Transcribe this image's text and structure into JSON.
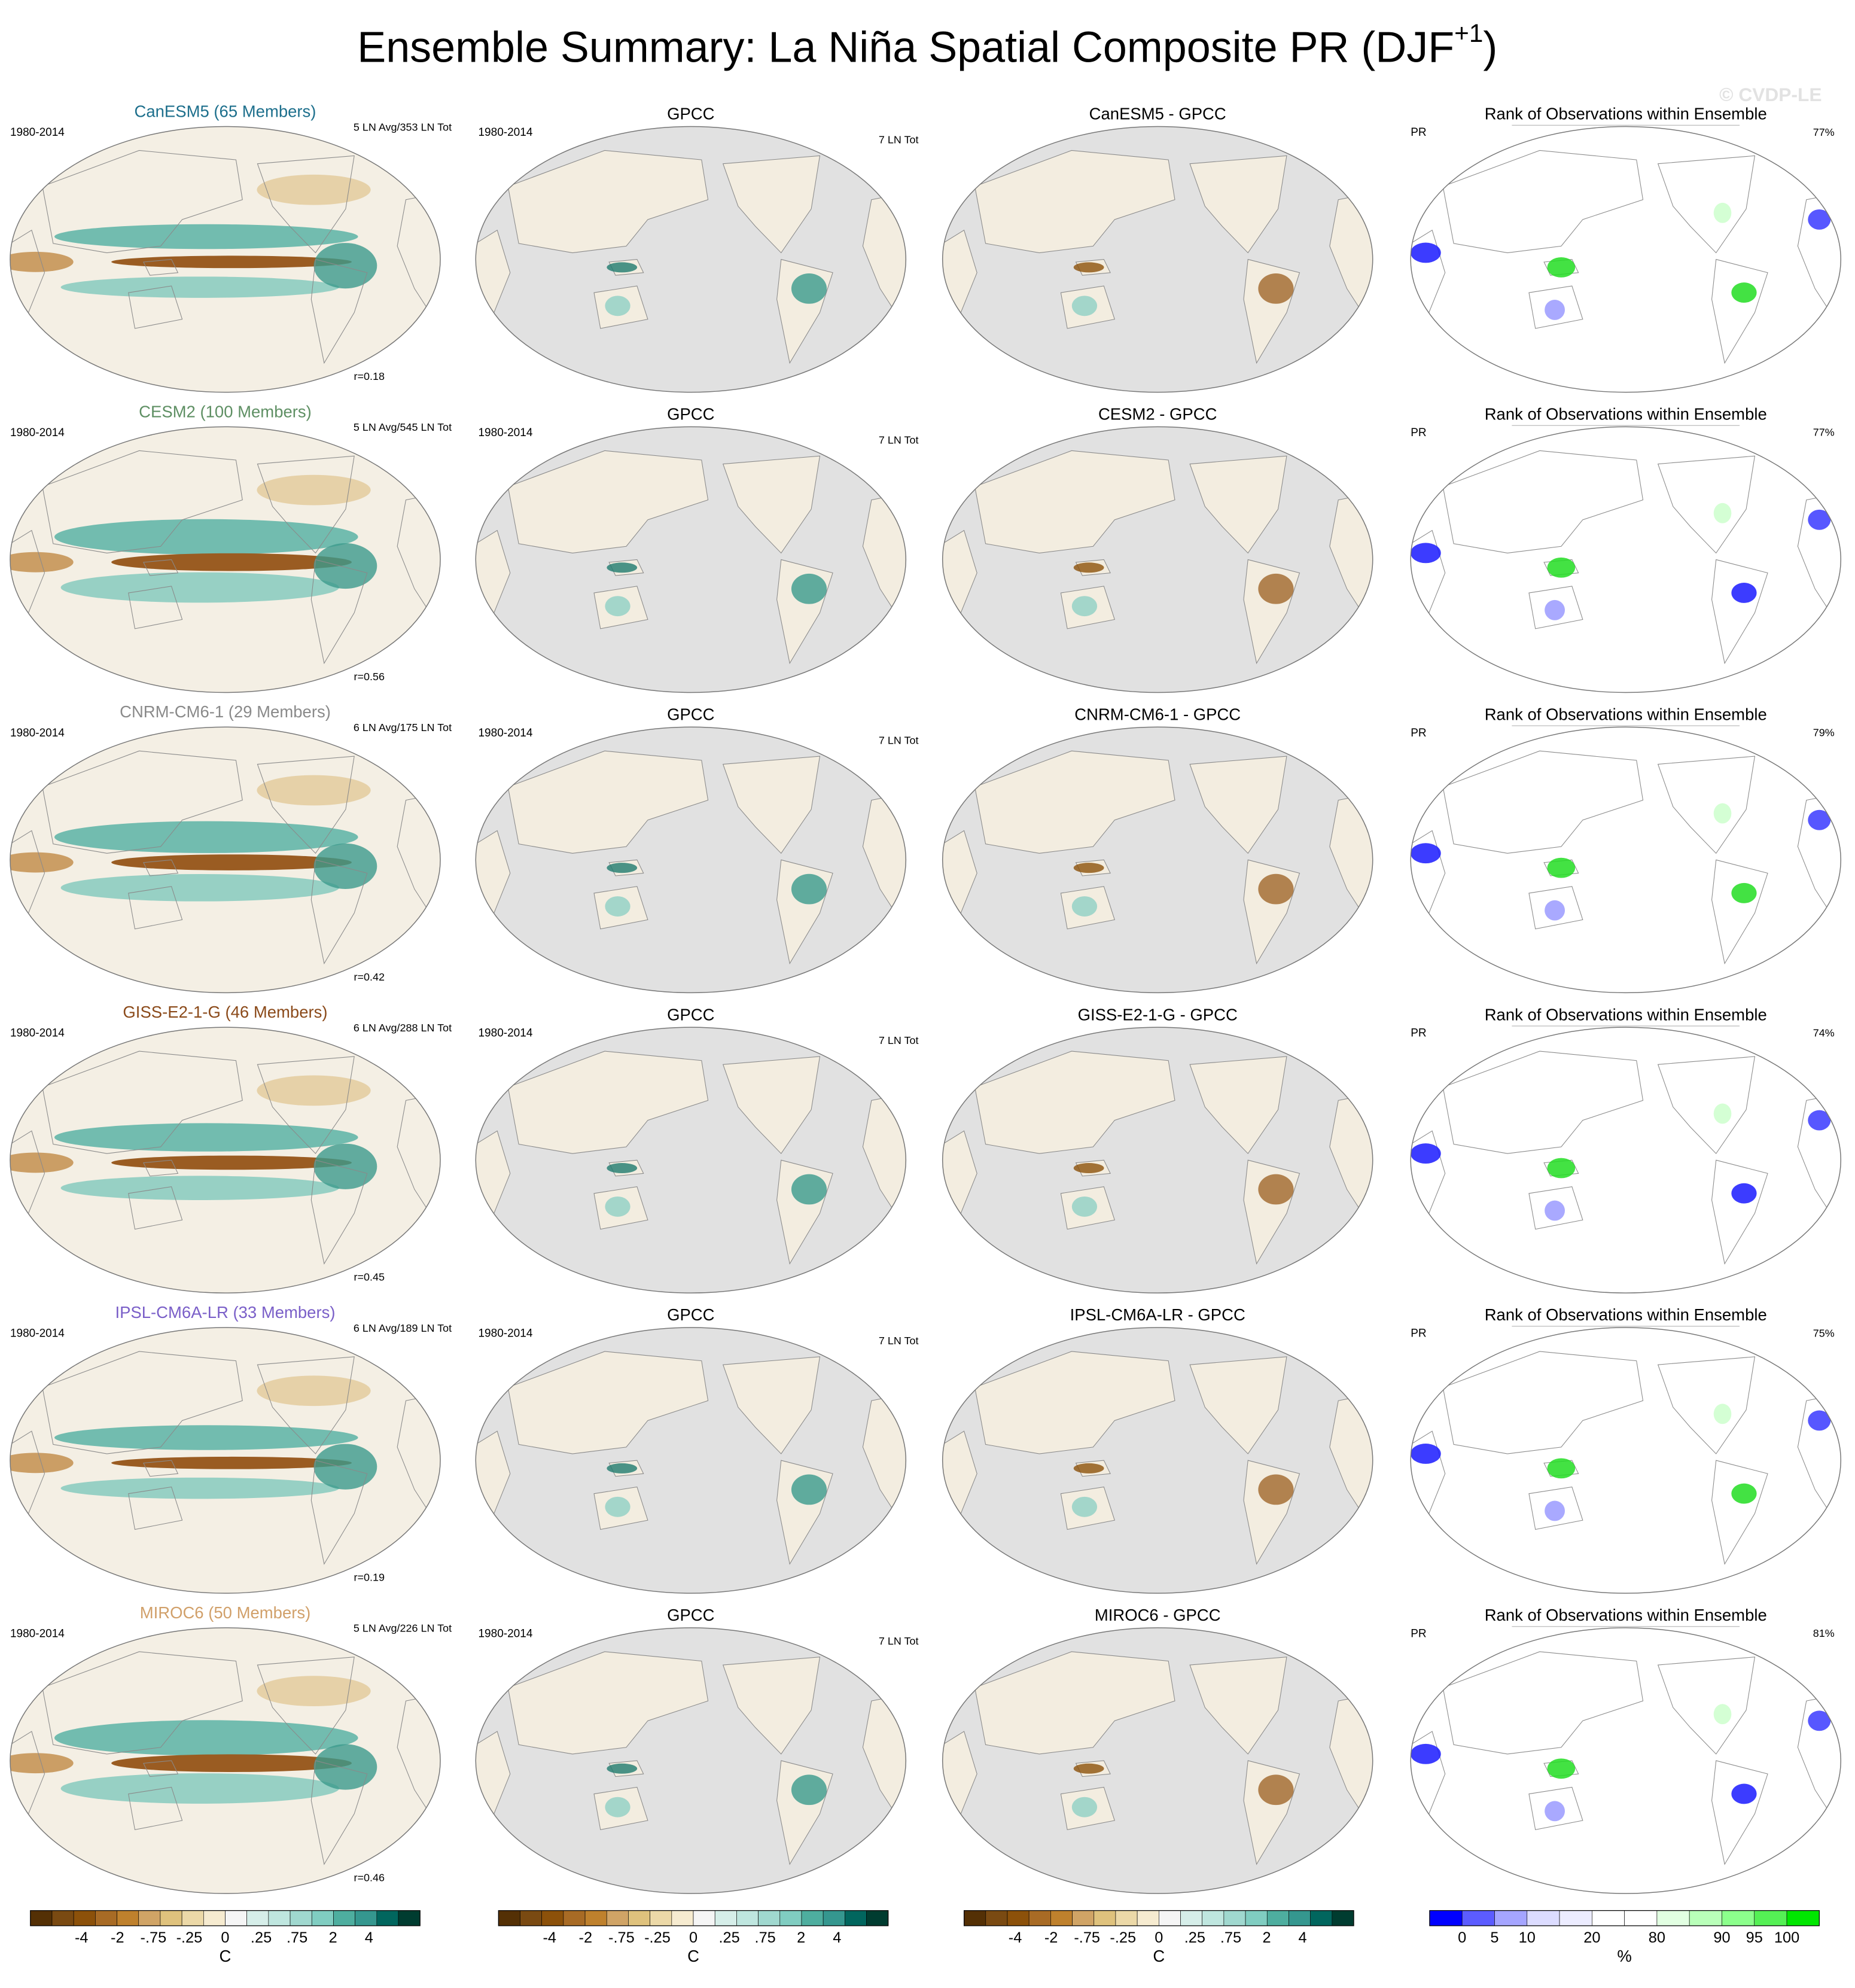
{
  "title": "Ensemble Summary: La Niña Spatial Composite PR (DJF",
  "title_sup": "+1",
  "watermark": "© CVDP-LE",
  "rows": [
    {
      "model": "CanESM5 (65 Members)",
      "model_color": "#1d6f8c",
      "period": "1980-2014",
      "counts": "5 LN Avg/353 LN Tot",
      "r": "r=0.18",
      "obs_title": "GPCC",
      "obs_period": "1980-2014",
      "obs_counts": "7 LN Tot",
      "diff_title": "CanESM5 - GPCC",
      "rank_title": "Rank of Observations within Ensemble",
      "rank_var": "PR",
      "rank_pct": "77%"
    },
    {
      "model": "CESM2 (100 Members)",
      "model_color": "#5e8f63",
      "period": "1980-2014",
      "counts": "5 LN Avg/545 LN Tot",
      "r": "r=0.56",
      "obs_title": "GPCC",
      "obs_period": "1980-2014",
      "obs_counts": "7 LN Tot",
      "diff_title": "CESM2 - GPCC",
      "rank_title": "Rank of Observations within Ensemble",
      "rank_var": "PR",
      "rank_pct": "77%"
    },
    {
      "model": "CNRM-CM6-1 (29 Members)",
      "model_color": "#8a8a8a",
      "period": "1980-2014",
      "counts": "6 LN Avg/175 LN Tot",
      "r": "r=0.42",
      "obs_title": "GPCC",
      "obs_period": "1980-2014",
      "obs_counts": "7 LN Tot",
      "diff_title": "CNRM-CM6-1 - GPCC",
      "rank_title": "Rank of Observations within Ensemble",
      "rank_var": "PR",
      "rank_pct": "79%"
    },
    {
      "model": "GISS-E2-1-G (46 Members)",
      "model_color": "#8b4a1a",
      "period": "1980-2014",
      "counts": "6 LN Avg/288 LN Tot",
      "r": "r=0.45",
      "obs_title": "GPCC",
      "obs_period": "1980-2014",
      "obs_counts": "7 LN Tot",
      "diff_title": "GISS-E2-1-G - GPCC",
      "rank_title": "Rank of Observations within Ensemble",
      "rank_var": "PR",
      "rank_pct": "74%"
    },
    {
      "model": "IPSL-CM6A-LR (33 Members)",
      "model_color": "#7a5fc8",
      "period": "1980-2014",
      "counts": "6 LN Avg/189 LN Tot",
      "r": "r=0.19",
      "obs_title": "GPCC",
      "obs_period": "1980-2014",
      "obs_counts": "7 LN Tot",
      "diff_title": "IPSL-CM6A-LR - GPCC",
      "rank_title": "Rank of Observations within Ensemble",
      "rank_var": "PR",
      "rank_pct": "75%"
    },
    {
      "model": "MIROC6 (50 Members)",
      "model_color": "#d1a06a",
      "period": "1980-2014",
      "counts": "5 LN Avg/226 LN Tot",
      "r": "r=0.46",
      "obs_title": "GPCC",
      "obs_period": "1980-2014",
      "obs_counts": "7 LN Tot",
      "diff_title": "MIROC6 - GPCC",
      "rank_title": "Rank of Observations within Ensemble",
      "rank_var": "PR",
      "rank_pct": "81%"
    }
  ],
  "colorbars": [
    {
      "labels": [
        "-4",
        "-2",
        "-.75",
        "-.25",
        "0",
        ".25",
        ".75",
        "2",
        "4"
      ],
      "unit": "C"
    },
    {
      "labels": [
        "-4",
        "-2",
        "-.75",
        "-.25",
        "0",
        ".25",
        ".75",
        "2",
        "4"
      ],
      "unit": "C"
    },
    {
      "labels": [
        "-4",
        "-2",
        "-.75",
        "-.25",
        "0",
        ".25",
        ".75",
        "2",
        "4"
      ],
      "unit": "C"
    },
    {
      "labels": [
        "0",
        "5",
        "10",
        "20",
        "80",
        "90",
        "95",
        "100"
      ],
      "unit": "%"
    }
  ],
  "diverging_colors": [
    "#543005",
    "#7a4a12",
    "#8c510a",
    "#a86b25",
    "#bf812d",
    "#d0a466",
    "#dfc27d",
    "#ecd9a8",
    "#f6ebd0",
    "#f5f5f5",
    "#d6eee9",
    "#bfe6df",
    "#a0d8cf",
    "#80cdc1",
    "#4eae9f",
    "#35978f",
    "#01665e",
    "#003c30"
  ],
  "rank_colors": [
    "#0000ff",
    "#5c5cff",
    "#a5a5ff",
    "#dcdcff",
    "#ececff",
    "#ffffff",
    "#ffffff",
    "#e2ffe2",
    "#b9ffb9",
    "#8cff8c",
    "#55f055",
    "#00e600"
  ]
}
